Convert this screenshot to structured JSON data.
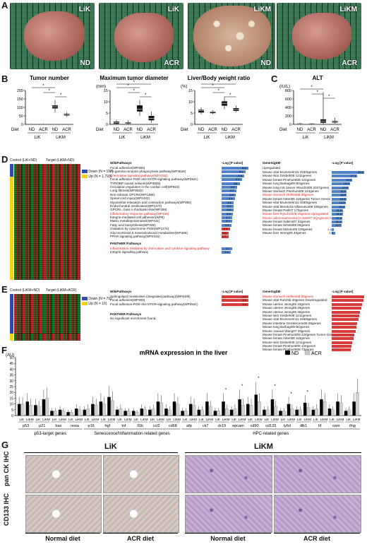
{
  "panel_labels": {
    "a": "A",
    "b": "B",
    "c": "C",
    "d": "D",
    "e": "E",
    "f": "F",
    "g": "G"
  },
  "panelA": {
    "photos": [
      {
        "top": "LiK",
        "bottom": "ND"
      },
      {
        "top": "LiK",
        "bottom": "ACR"
      },
      {
        "top": "LiKM",
        "bottom": "ND"
      },
      {
        "top": "LiKM",
        "bottom": "ACR"
      }
    ]
  },
  "panelB": {
    "charts": [
      {
        "title": "Tumor number",
        "unit": "",
        "yticks": [
          "200",
          "150",
          "100",
          "50",
          "0"
        ]
      },
      {
        "title": "Maximum tumor diameter",
        "unit": "(mm)",
        "yticks": [
          "15",
          "10",
          "5",
          "0"
        ]
      },
      {
        "title": "Liver/Body weight ratio",
        "unit": "(%)",
        "yticks": [
          "15",
          "10",
          "5",
          "0"
        ]
      }
    ],
    "diet_label": "Diet",
    "diets": [
      "ND",
      "ACR",
      "ND",
      "ACR"
    ],
    "groups": [
      "LiK",
      "LiKM"
    ],
    "sig": "*"
  },
  "panelC": {
    "title": "ALT",
    "unit": "(IU/L)",
    "yticks": [
      "800",
      "600",
      "400",
      "200",
      "0"
    ],
    "diet_label": "Diet",
    "diets": [
      "ND",
      "ACR",
      "ND",
      "ACR"
    ],
    "groups": [
      "LiK",
      "LiKM"
    ],
    "sig": "*"
  },
  "panelD": {
    "heat_headers": [
      "Control (LiK+ND)",
      "Target (LiKM+ND)"
    ],
    "legend": [
      {
        "label": "Down (N = 167)",
        "color": "#2f4da8"
      },
      {
        "label": "Up (N = 1,793)",
        "color": "#f3d11a"
      }
    ],
    "wiki_title": "WikiPathways",
    "logp": "-Log [P value]",
    "wiki": [
      {
        "name": "Focal adhesion(WP306)",
        "v": "6.8",
        "red": false
      },
      {
        "name": "Fc-gamma receptor phagocytosis pathway(WP3626)",
        "v": "6.1",
        "red": false
      },
      {
        "name": "Chemokine signaling pathway(WP2292)",
        "v": "5.8",
        "red": true
      },
      {
        "name": "Focal adhesion-PI3K-Akt-mTOR-signaling pathway(WP2841)",
        "v": "5.2",
        "red": false
      },
      {
        "name": "TYROBP causal network(WP3625)",
        "v": "4.6",
        "red": false
      },
      {
        "name": "Circulation regulation in the cardiac cell(WP553)",
        "v": "3.9",
        "red": false
      },
      {
        "name": "Lung fibrosis(WP3632)",
        "v": "3.7",
        "red": false
      },
      {
        "name": "Non-odorant GPCRs(WP1396)",
        "v": "3.6",
        "red": false
      },
      {
        "name": "Spinal cord injury(WP2432)",
        "v": "3.4",
        "red": false
      },
      {
        "name": "Myometrial relaxation and contraction pathways(WP385)",
        "v": "3.1",
        "red": false
      },
      {
        "name": "Endochondral ossification(WP1270)",
        "v": "3.0",
        "red": false
      },
      {
        "name": "GPCRs, class A rhodopsin-like(WP189)",
        "v": "3.0",
        "red": false
      },
      {
        "name": "Inflammatory response pathway(WP458)",
        "v": "2.9",
        "red": true
      },
      {
        "name": "Integrin-mediated cell adhesion(WP6)",
        "v": "2.7",
        "red": false
      },
      {
        "name": "Matrix metalloproteinases(WP441)",
        "v": "2.7",
        "red": false
      },
      {
        "name": "Fatty acid biosynthesis(WP336)",
        "v": "2.5",
        "red": false
      },
      {
        "name": "Oxidation by cytochrome P450(WP1274)",
        "v": "2.1",
        "red": false
      },
      {
        "name": "Glucocorticoid & mineralcorticoid metabolism(WP495)",
        "v": "1.8",
        "red": false
      },
      {
        "name": "PPAR signaling pathway(WP2316)",
        "v": "1.7",
        "red": false
      }
    ],
    "panther_title": "PANTHER Pathways",
    "panther": [
      {
        "name": "Inflammation mediated by chemokine and cytokine signaling pathway",
        "v": "2.7",
        "red": true
      },
      {
        "name": "Integrin signalling pathway",
        "v": "2.4",
        "red": false
      }
    ],
    "gene_title": "GeneSigDB",
    "upregulated": "Upregulated",
    "gene": [
      {
        "name": "Mouse vital Brummelm11 GbE5genes",
        "v": "34.6",
        "red": false
      },
      {
        "name": "Mouse skin Drisbeh08 1211genes",
        "v": "27.1",
        "red": false
      },
      {
        "name": "Mouse breast Pinehurst08 124genes",
        "v": "22.1",
        "red": false
      },
      {
        "name": "Mouse lung Barbagi09 BOgenes",
        "v": "19.4",
        "red": false
      },
      {
        "name": "Mouse lung not cancer Woodrot09 2037genes",
        "v": "17.9",
        "red": false
      },
      {
        "name": "Mouse stomach Pinehurst08 124genes",
        "v": "15.8",
        "red": false
      },
      {
        "name": "Mouse stomach Hofsen08 39genes",
        "v": "15.8",
        "red": true
      },
      {
        "name": "Mouse breast Asteri08 110genes Tumor Genes",
        "v": "15.6",
        "red": false
      },
      {
        "name": "Mouse vital Brummelm11 GbE5genes",
        "v": "14.9",
        "red": false
      },
      {
        "name": "Mouse vital Mendoza-Villanueva08 180genes",
        "v": "14.4",
        "red": false
      },
      {
        "name": "Mouse breast Parli07 173genes",
        "v": "11.8",
        "red": false
      },
      {
        "name": "Mouse liver Ryschick08 28genes Upregulated",
        "v": "11.8",
        "red": true
      },
      {
        "name": "Mouse adenocarcinoma (A Sato07 2QAgenes A",
        "v": "11.6",
        "red": true
      },
      {
        "name": "Mouse breast Sabino07 32genes",
        "v": "11.1",
        "red": false
      },
      {
        "name": "Mouse breast Winsbl08 58genes",
        "v": "10.7",
        "red": false
      },
      {
        "name": "Mouse breast Mizuno09 109genes",
        "v": "2.4",
        "red": false
      },
      {
        "name": "Mouse liver strong09 40genes",
        "v": "3.9",
        "red": false
      }
    ]
  },
  "panelE": {
    "heat_headers": [
      "Control (LiKM+ND)",
      "Target (LiKM+ACR)"
    ],
    "legend": [
      {
        "label": "Down (N = 70)",
        "color": "#2f4da8"
      },
      {
        "label": "Up (N = 10)",
        "color": "#f3d11a"
      }
    ],
    "wiki_title": "WikiPathways",
    "logp": "-Log [P value]",
    "wiki": [
      {
        "name": "Sphingolipid metabolism (integrated pathway)(WP4009)",
        "v": "1.3",
        "red": false
      },
      {
        "name": "Focal adhesion(WP306)",
        "v": "1.3",
        "red": false
      },
      {
        "name": "Focal adhesion-PI3K-Akt-mTOR-signaling pathway(WP2841)",
        "v": "1.3",
        "red": false
      }
    ],
    "panther_title": "PANTHER Pathways",
    "panther_note": "No significant enrichment found.",
    "gene_title": "GeneSigDB",
    "gene": [
      {
        "name": "Mouse stomach Hofsen08 39genes",
        "v": "",
        "red": true
      },
      {
        "name": "Mouse vital Ruhz5b 40genes Downregulated",
        "v": "",
        "red": false
      },
      {
        "name": "Mouse uterine Jeong05 43genes",
        "v": "",
        "red": false
      },
      {
        "name": "Mouse uterine Jeong05 29genes",
        "v": "",
        "red": false
      },
      {
        "name": "Mouse uterine Jeong05 46genes",
        "v": "",
        "red": false
      },
      {
        "name": "Mouse skin Drisbeh08 1211genes",
        "v": "",
        "red": false
      },
      {
        "name": "Mouse vital Brummelm11 GbE5genes",
        "v": "",
        "red": false
      },
      {
        "name": "Mouse intestine Gerdescone08 59genes",
        "v": "",
        "red": false
      },
      {
        "name": "Mouse lung Barbagi09 BOgenes",
        "v": "",
        "red": false
      },
      {
        "name": "Mouse ovarian Wang07 19genes",
        "v": "",
        "red": false
      },
      {
        "name": "Mouse breast Pinehurst08 124genes Tumor Genes",
        "v": "",
        "red": false
      },
      {
        "name": "Mouse breast Asteri08 110genes",
        "v": "",
        "red": false
      },
      {
        "name": "Mouse skin Drisbeh08 1211genes",
        "v": "",
        "red": false
      },
      {
        "name": "Mouse breast Pinehurst08 124genes",
        "v": "",
        "red": false
      },
      {
        "name": "Mouse breast Pinehurst08 73genes",
        "v": "",
        "red": false
      }
    ]
  },
  "panelF": {
    "title": "mRNA expression in the liver",
    "unit": "(AU)",
    "yticks": [
      "50",
      "45",
      "40",
      "35",
      "30",
      "25",
      "20",
      "15",
      "10",
      "5",
      "0"
    ],
    "legend": [
      {
        "label": "ND",
        "color": "#000000"
      },
      {
        "label": "ACR",
        "color": "#c8c8c8"
      }
    ],
    "genes": [
      "p53",
      "p21",
      "bax",
      "noxa",
      "p16",
      "hgf",
      "tnf",
      "Il1b",
      "ccl2",
      "cd68",
      "afp",
      "ck7",
      "ck19",
      "epcam",
      "cd90",
      "cd133",
      "ly6d",
      "dlk1",
      "lif",
      "osm",
      "ifng"
    ],
    "groups": [
      {
        "label": "p53-target genes",
        "n": 4
      },
      {
        "label": "Senescence/Inflammation-related genes",
        "n": 6
      },
      {
        "label": "HPC-related genes",
        "n": 11
      }
    ],
    "sub": [
      "LiK",
      "LiKM"
    ],
    "sig": "*"
  },
  "chart_data": {
    "type": "bar",
    "title": "mRNA expression in the liver",
    "ylabel": "(AU)",
    "ylim": [
      0,
      50
    ],
    "categories": [
      "p53 LiK",
      "p53 LiKM",
      "p21 LiK",
      "p21 LiKM",
      "bax LiK",
      "bax LiKM",
      "noxa LiK",
      "noxa LiKM",
      "p16 LiK",
      "p16 LiKM",
      "hgf LiK",
      "hgf LiKM",
      "tnf LiK",
      "tnf LiKM",
      "Il1b LiK",
      "Il1b LiKM",
      "ccl2 LiK",
      "ccl2 LiKM",
      "cd68 LiK",
      "cd68 LiKM",
      "afp LiK",
      "afp LiKM",
      "ck7 LiK",
      "ck7 LiKM",
      "ck19 LiK",
      "ck19 LiKM",
      "epcam LiK",
      "epcam LiKM",
      "cd90 LiK",
      "cd90 LiKM",
      "cd133 LiK",
      "cd133 LiKM",
      "ly6d LiK",
      "ly6d LiKM",
      "dlk1 LiK",
      "dlk1 LiKM",
      "lif LiK",
      "lif LiKM",
      "osm LiK",
      "osm LiKM",
      "ifng LiK",
      "ifng LiKM"
    ],
    "series": [
      {
        "name": "ND",
        "values": [
          10,
          12,
          9,
          14,
          4,
          5,
          3,
          6,
          5,
          10,
          12,
          16,
          5,
          4,
          4,
          6,
          5,
          12,
          6,
          12,
          4,
          10,
          5,
          12,
          4,
          12,
          5,
          14,
          10,
          18,
          5,
          14,
          4,
          10,
          5,
          11,
          5,
          14,
          6,
          12,
          4,
          12
        ]
      },
      {
        "name": "ACR",
        "values": [
          10,
          9,
          8,
          15,
          4,
          4,
          3,
          5,
          6,
          9,
          10,
          13,
          6,
          4,
          3,
          5,
          6,
          11,
          5,
          10,
          4,
          9,
          5,
          8,
          4,
          6,
          6,
          9,
          9,
          12,
          5,
          8,
          4,
          6,
          5,
          7,
          6,
          12,
          5,
          11,
          5,
          20
        ]
      }
    ]
  },
  "panelG": {
    "groups": [
      "LiK",
      "LiKM"
    ],
    "rows": [
      "pan CK IHC",
      "CD133 IHC"
    ],
    "diets": [
      "Normal diet",
      "ACR diet",
      "Normal diet",
      "ACR diet"
    ]
  }
}
